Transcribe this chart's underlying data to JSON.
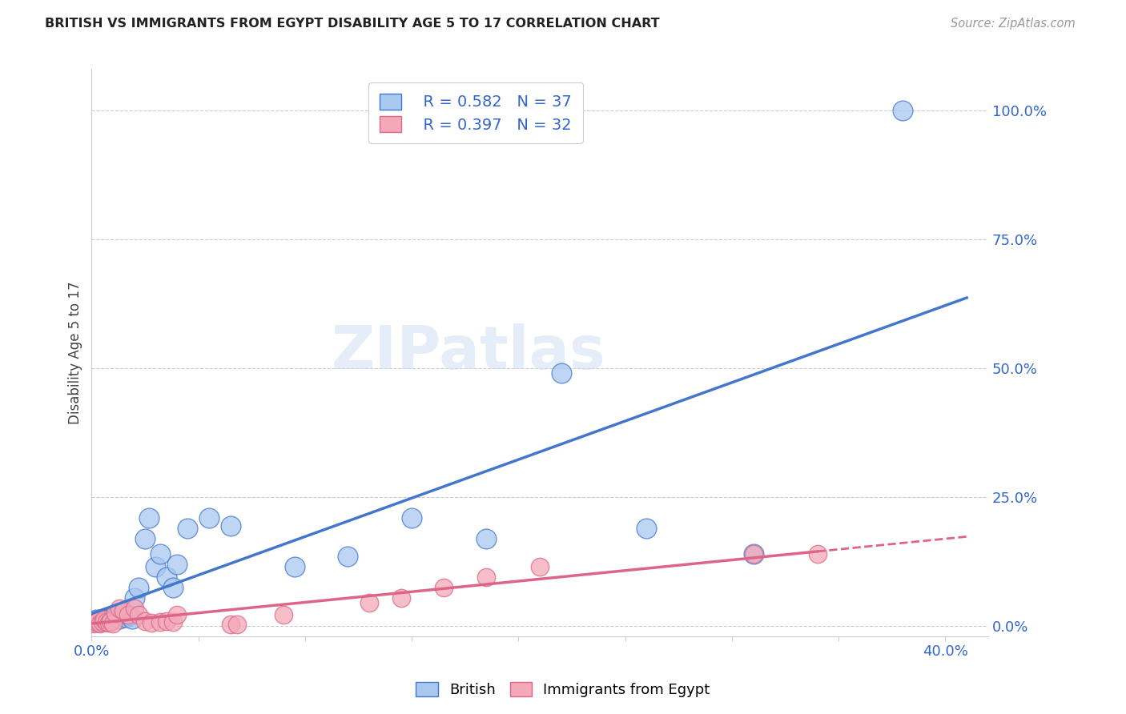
{
  "title": "BRITISH VS IMMIGRANTS FROM EGYPT DISABILITY AGE 5 TO 17 CORRELATION CHART",
  "source": "Source: ZipAtlas.com",
  "ylabel": "Disability Age 5 to 17",
  "legend_label_british": "British",
  "legend_label_egypt": "Immigrants from Egypt",
  "british_R": 0.582,
  "british_N": 37,
  "egypt_R": 0.397,
  "egypt_N": 32,
  "xlim": [
    0.0,
    0.42
  ],
  "ylim": [
    -0.02,
    1.08
  ],
  "right_yticks": [
    0.0,
    0.25,
    0.5,
    0.75,
    1.0
  ],
  "right_yticklabels": [
    "0.0%",
    "25.0%",
    "50.0%",
    "75.0%",
    "100.0%"
  ],
  "xticks": [
    0.0,
    0.05,
    0.1,
    0.15,
    0.2,
    0.25,
    0.3,
    0.35,
    0.4
  ],
  "xticklabels": [
    "0.0%",
    "",
    "",
    "",
    "",
    "",
    "",
    "",
    "40.0%"
  ],
  "background_color": "#ffffff",
  "grid_color": "#cccccc",
  "blue_color": "#a8c8f0",
  "pink_color": "#f4a8b8",
  "blue_line_color": "#4477cc",
  "pink_line_color": "#dd6688",
  "watermark_text": "ZIPatlas",
  "british_x": [
    0.001,
    0.002,
    0.003,
    0.004,
    0.005,
    0.006,
    0.007,
    0.008,
    0.009,
    0.01,
    0.011,
    0.012,
    0.013,
    0.015,
    0.016,
    0.018,
    0.019,
    0.02,
    0.022,
    0.025,
    0.027,
    0.03,
    0.032,
    0.035,
    0.038,
    0.04,
    0.045,
    0.055,
    0.065,
    0.095,
    0.12,
    0.15,
    0.185,
    0.22,
    0.26,
    0.31,
    0.38
  ],
  "british_y": [
    0.01,
    0.012,
    0.008,
    0.01,
    0.015,
    0.012,
    0.01,
    0.015,
    0.012,
    0.018,
    0.015,
    0.02,
    0.015,
    0.025,
    0.018,
    0.02,
    0.015,
    0.055,
    0.075,
    0.17,
    0.21,
    0.115,
    0.14,
    0.095,
    0.075,
    0.12,
    0.19,
    0.21,
    0.195,
    0.115,
    0.135,
    0.21,
    0.17,
    0.49,
    0.19,
    0.14,
    1.0
  ],
  "egypt_x": [
    0.001,
    0.002,
    0.003,
    0.004,
    0.005,
    0.006,
    0.007,
    0.008,
    0.009,
    0.01,
    0.011,
    0.013,
    0.015,
    0.017,
    0.02,
    0.022,
    0.025,
    0.028,
    0.032,
    0.035,
    0.038,
    0.04,
    0.065,
    0.068,
    0.09,
    0.13,
    0.145,
    0.165,
    0.185,
    0.21,
    0.31,
    0.34
  ],
  "egypt_y": [
    0.005,
    0.008,
    0.01,
    0.005,
    0.008,
    0.012,
    0.008,
    0.006,
    0.01,
    0.005,
    0.025,
    0.035,
    0.03,
    0.022,
    0.035,
    0.022,
    0.01,
    0.007,
    0.008,
    0.01,
    0.008,
    0.022,
    0.004,
    0.004,
    0.022,
    0.045,
    0.055,
    0.075,
    0.095,
    0.115,
    0.14,
    0.14
  ]
}
